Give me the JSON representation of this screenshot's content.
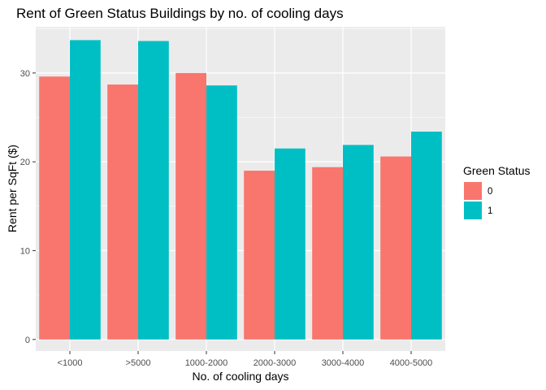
{
  "chart_data": {
    "type": "bar",
    "title": "Rent of Green Status Buildings by no. of cooling days",
    "xlabel": "No. of cooling days",
    "ylabel": "Rent per SqFt ($)",
    "categories": [
      "<1000",
      ">5000",
      "1000-2000",
      "2000-3000",
      "3000-4000",
      "4000-5000"
    ],
    "series": [
      {
        "name": "0",
        "color": "#F8766D",
        "values": [
          29.6,
          28.7,
          30.0,
          19.0,
          19.4,
          20.6
        ]
      },
      {
        "name": "1",
        "color": "#00BFC4",
        "values": [
          33.7,
          33.6,
          28.6,
          21.5,
          21.9,
          23.4
        ]
      }
    ],
    "ylim": [
      -1.3,
      35.2
    ],
    "yticks": [
      0,
      10,
      20,
      30
    ],
    "grid": true,
    "legend": {
      "title": "Green Status",
      "position": "right"
    },
    "panel_background": "#EBEBEB"
  }
}
